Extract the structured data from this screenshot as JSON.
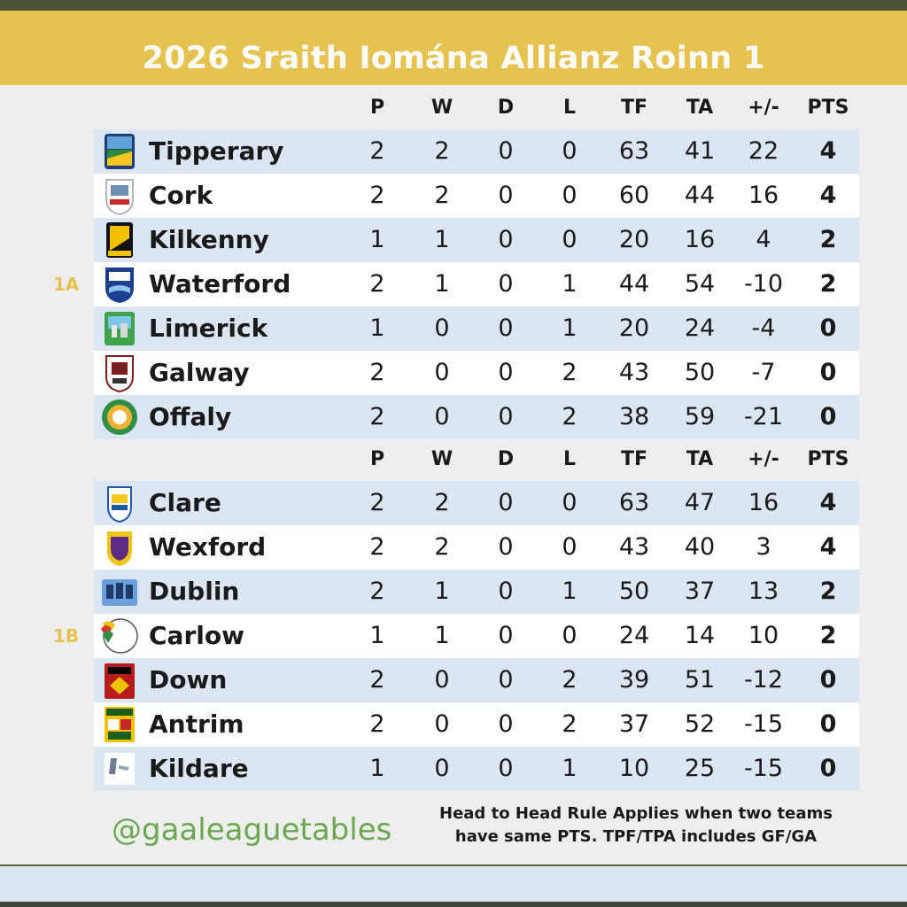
{
  "title": "2026 Sraith Iomána Allianz Roinn 1",
  "columns": [
    "P",
    "W",
    "D",
    "L",
    "TF",
    "TA",
    "+/-",
    "PTS"
  ],
  "groups": [
    {
      "label": "1A",
      "rows": [
        {
          "team": "Tipperary",
          "crest": "tipperary-crest",
          "P": "2",
          "W": "2",
          "D": "0",
          "L": "0",
          "TF": "63",
          "TA": "41",
          "diff": "22",
          "PTS": "4"
        },
        {
          "team": "Cork",
          "crest": "cork-crest",
          "P": "2",
          "W": "2",
          "D": "0",
          "L": "0",
          "TF": "60",
          "TA": "44",
          "diff": "16",
          "PTS": "4"
        },
        {
          "team": "Kilkenny",
          "crest": "kilkenny-crest",
          "P": "1",
          "W": "1",
          "D": "0",
          "L": "0",
          "TF": "20",
          "TA": "16",
          "diff": "4",
          "PTS": "2"
        },
        {
          "team": "Waterford",
          "crest": "waterford-crest",
          "P": "2",
          "W": "1",
          "D": "0",
          "L": "1",
          "TF": "44",
          "TA": "54",
          "diff": "-10",
          "PTS": "2"
        },
        {
          "team": "Limerick",
          "crest": "limerick-crest",
          "P": "1",
          "W": "0",
          "D": "0",
          "L": "1",
          "TF": "20",
          "TA": "24",
          "diff": "-4",
          "PTS": "0"
        },
        {
          "team": "Galway",
          "crest": "galway-crest",
          "P": "2",
          "W": "0",
          "D": "0",
          "L": "2",
          "TF": "43",
          "TA": "50",
          "diff": "-7",
          "PTS": "0"
        },
        {
          "team": "Offaly",
          "crest": "offaly-crest",
          "P": "2",
          "W": "0",
          "D": "0",
          "L": "2",
          "TF": "38",
          "TA": "59",
          "diff": "-21",
          "PTS": "0"
        }
      ]
    },
    {
      "label": "1B",
      "rows": [
        {
          "team": "Clare",
          "crest": "clare-crest",
          "P": "2",
          "W": "2",
          "D": "0",
          "L": "0",
          "TF": "63",
          "TA": "47",
          "diff": "16",
          "PTS": "4"
        },
        {
          "team": "Wexford",
          "crest": "wexford-crest",
          "P": "2",
          "W": "2",
          "D": "0",
          "L": "0",
          "TF": "43",
          "TA": "40",
          "diff": "3",
          "PTS": "4"
        },
        {
          "team": "Dublin",
          "crest": "dublin-crest",
          "P": "2",
          "W": "1",
          "D": "0",
          "L": "1",
          "TF": "50",
          "TA": "37",
          "diff": "13",
          "PTS": "2"
        },
        {
          "team": "Carlow",
          "crest": "carlow-crest",
          "P": "1",
          "W": "1",
          "D": "0",
          "L": "0",
          "TF": "24",
          "TA": "14",
          "diff": "10",
          "PTS": "2"
        },
        {
          "team": "Down",
          "crest": "down-crest",
          "P": "2",
          "W": "0",
          "D": "0",
          "L": "2",
          "TF": "39",
          "TA": "51",
          "diff": "-12",
          "PTS": "0"
        },
        {
          "team": "Antrim",
          "crest": "antrim-crest",
          "P": "2",
          "W": "0",
          "D": "0",
          "L": "2",
          "TF": "37",
          "TA": "52",
          "diff": "-15",
          "PTS": "0"
        },
        {
          "team": "Kildare",
          "crest": "kildare-crest",
          "P": "1",
          "W": "0",
          "D": "0",
          "L": "1",
          "TF": "10",
          "TA": "25",
          "diff": "-15",
          "PTS": "0"
        }
      ]
    }
  ],
  "handle": "@gaaleaguetables",
  "note_line1": "Head to Head Rule Applies when two teams",
  "note_line2": "have same PTS. TPF/TPA includes GF/GA",
  "colors": {
    "banner": "#e8c251",
    "group_label": "#e8c251",
    "row_alt": "#dce6f3",
    "row": "#ffffff",
    "panel": "#eeeeee",
    "handle": "#6aa84f"
  }
}
